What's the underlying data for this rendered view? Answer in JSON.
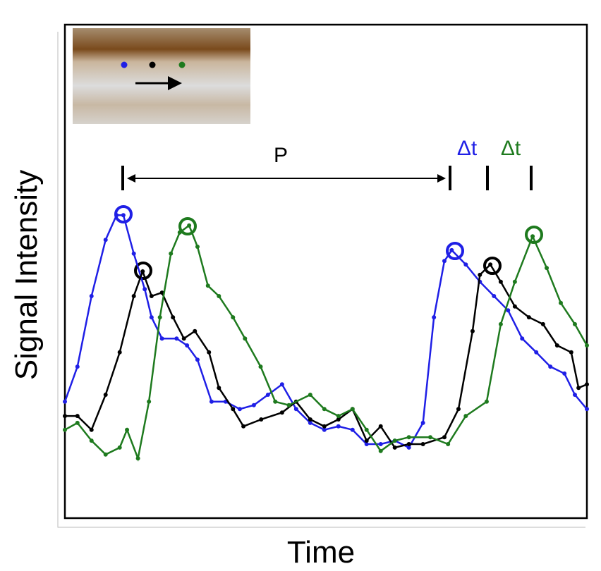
{
  "chart_data": {
    "type": "line",
    "y_label": "Signal Intensity",
    "x_label": "Time",
    "annotations": [
      "P",
      "Δt",
      "Δt"
    ],
    "xlim": [
      0,
      100
    ],
    "ylim": [
      0,
      100
    ],
    "series": [
      {
        "color": "#1f1fe6",
        "x": [
          0,
          2.4,
          5.1,
          7.8,
          9.9,
          11.2,
          13.2,
          15.3,
          16.6,
          18.6,
          21.4,
          23.4,
          25.4,
          28.1,
          30.8,
          33.5,
          36.2,
          38.9,
          41.6,
          44.3,
          47,
          49.7,
          52.4,
          55.1,
          57.8,
          60.5,
          63.2,
          65.9,
          68.6,
          70.7,
          72.7,
          74.1,
          76.8,
          79.5,
          82.2,
          84.9,
          87.6,
          90.3,
          93,
          95.7,
          97.7,
          100
        ],
        "values": [
          23.6,
          30.7,
          45,
          56.4,
          61.4,
          61.4,
          53.6,
          46.4,
          40.7,
          36.4,
          36.4,
          35,
          32.1,
          23.6,
          23.6,
          22.1,
          22.9,
          25,
          27.1,
          22.1,
          19.3,
          17.9,
          18.6,
          17.9,
          15,
          15,
          15.7,
          14.3,
          19.3,
          40.7,
          52.1,
          54.3,
          51.4,
          47.9,
          45,
          42.1,
          36.4,
          33.6,
          30.7,
          29.3,
          25,
          22.1
        ]
      },
      {
        "color": "#000000",
        "x": [
          0,
          2.4,
          5.1,
          7.8,
          10.5,
          13.2,
          14.9,
          16.6,
          18.6,
          20.7,
          22.8,
          24.9,
          27.6,
          29.5,
          32.2,
          34.2,
          37.6,
          41.6,
          44.3,
          47,
          49.7,
          52.4,
          55.1,
          57.8,
          60.5,
          63.2,
          65.9,
          68.6,
          72.7,
          75.4,
          78.1,
          79.5,
          81.5,
          83.5,
          86.2,
          88.9,
          91.6,
          94.3,
          97,
          98.4,
          100
        ],
        "values": [
          20.7,
          20.7,
          17.9,
          25,
          33.6,
          45,
          50,
          45,
          45.7,
          40.7,
          36.4,
          37.9,
          33.6,
          26.4,
          22.1,
          18.6,
          20,
          21.4,
          23.6,
          20,
          18.6,
          20,
          22.1,
          15.7,
          18.6,
          14.3,
          15,
          15,
          16.4,
          22.1,
          37.9,
          49.3,
          51.4,
          47.9,
          42.9,
          40.7,
          39.3,
          35,
          33.6,
          26.4,
          27.1
        ]
      },
      {
        "color": "#1e7a1e",
        "x": [
          0,
          2.4,
          5.1,
          7.8,
          10.5,
          11.9,
          14,
          16.1,
          18.2,
          20.3,
          22,
          23.8,
          25.4,
          27.4,
          29.5,
          32.2,
          34.5,
          37.5,
          40.3,
          42.9,
          47,
          49.7,
          52.4,
          55.1,
          57.8,
          60.5,
          63.2,
          65.9,
          70,
          73.4,
          76.8,
          80.8,
          83.5,
          86.2,
          89.6,
          92.3,
          95,
          97.7,
          100
        ],
        "values": [
          17.9,
          19.3,
          15.7,
          12.9,
          14.3,
          17.9,
          12.1,
          23.6,
          40.7,
          53.6,
          57.9,
          59.3,
          55,
          47.1,
          45,
          40.7,
          36.4,
          30.7,
          23.6,
          22.9,
          25,
          22.1,
          20.7,
          22.1,
          17.9,
          13.6,
          15.7,
          16.4,
          16.4,
          15,
          20.7,
          23.6,
          39.3,
          47.9,
          57.1,
          50.7,
          43.6,
          39.3,
          35
        ]
      }
    ]
  }
}
